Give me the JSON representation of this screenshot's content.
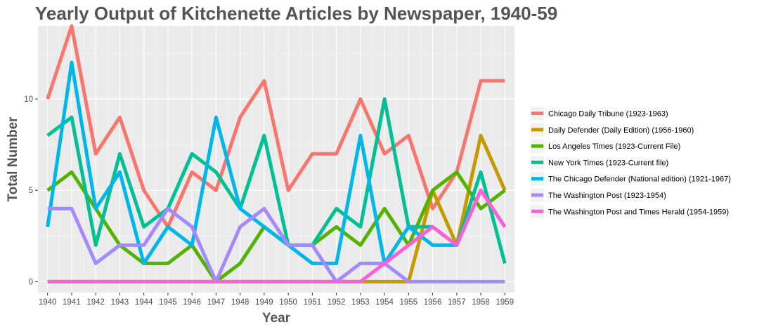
{
  "chart_data": {
    "type": "line",
    "title": "Yearly Output of Kitchenette Articles by Newspaper, 1940-59",
    "xlabel": "Year",
    "ylabel": "Total Number",
    "x": [
      1940,
      1941,
      1942,
      1943,
      1944,
      1945,
      1946,
      1947,
      1948,
      1949,
      1950,
      1951,
      1952,
      1953,
      1954,
      1955,
      1956,
      1957,
      1958,
      1959
    ],
    "xlim": [
      1939.6,
      1959.4
    ],
    "ylim": [
      -0.6,
      14.0
    ],
    "yticks": [
      0,
      5,
      10
    ],
    "grid": true,
    "legend_position": "right",
    "series": [
      {
        "name": "Chicago Daily Tribune (1923-1963)",
        "color": "#F8766D",
        "values": [
          10,
          14,
          7,
          9,
          5,
          3,
          6,
          5,
          9,
          11,
          5,
          7,
          7,
          10,
          7,
          8,
          4,
          6,
          11,
          11
        ]
      },
      {
        "name": "Daily Defender (Daily Edition) (1956-1960)",
        "color": "#C49A00",
        "values": [
          0,
          0,
          0,
          0,
          0,
          0,
          0,
          0,
          0,
          0,
          0,
          0,
          0,
          0,
          0,
          0,
          5,
          2,
          8,
          5
        ]
      },
      {
        "name": "Los Angeles Times (1923-Current File)",
        "color": "#53B400",
        "values": [
          5,
          6,
          4,
          2,
          1,
          1,
          2,
          0,
          1,
          3,
          2,
          2,
          3,
          2,
          4,
          2,
          5,
          6,
          4,
          5
        ]
      },
      {
        "name": "New York Times (1923-Current file)",
        "color": "#00C094",
        "values": [
          8,
          9,
          2,
          7,
          3,
          4,
          7,
          6,
          4,
          8,
          2,
          2,
          4,
          3,
          10,
          3,
          3,
          2,
          6,
          1
        ]
      },
      {
        "name": "The Chicago Defender (National edition) (1921-1967)",
        "color": "#00B6EB",
        "values": [
          3,
          12,
          4,
          6,
          1,
          3,
          2,
          9,
          4,
          3,
          2,
          1,
          1,
          8,
          1,
          3,
          2,
          2,
          5,
          3
        ]
      },
      {
        "name": "The Washington Post (1923-1954)",
        "color": "#A58AFF",
        "values": [
          4,
          4,
          1,
          2,
          2,
          4,
          3,
          0,
          3,
          4,
          2,
          2,
          0,
          1,
          1,
          0,
          0,
          0,
          0,
          0
        ]
      },
      {
        "name": "The Washington Post and Times Herald (1954-1959)",
        "color": "#FB61D7",
        "values": [
          0,
          0,
          0,
          0,
          0,
          0,
          0,
          0,
          0,
          0,
          0,
          0,
          0,
          0,
          1,
          2,
          3,
          2,
          5,
          3
        ]
      }
    ]
  }
}
